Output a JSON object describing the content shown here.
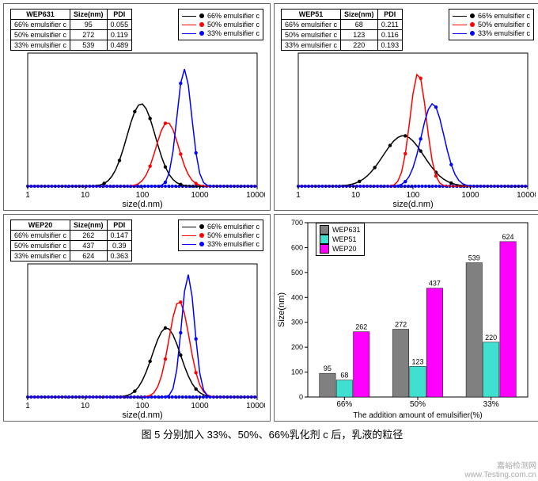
{
  "colors": {
    "black": "#000000",
    "red": "#ff0000",
    "blue": "#0000ff",
    "axis": "#000",
    "dots": "#0000ff",
    "barGray": "#808080",
    "barCyan": "#40e0d0",
    "barMagenta": "#ff00ff",
    "wm": "#b8b8b8"
  },
  "axis": {
    "xmin": 1,
    "xmax": 10000,
    "xlabel": "size(d.nm)",
    "xticks": [
      1,
      10,
      100,
      1000,
      10000
    ],
    "fontSize": 11
  },
  "legendLabels": [
    "66% emulsifier c",
    "50% emulsifier c",
    "33% emulsifier c"
  ],
  "tableHeaders": [
    "",
    "Size(nm)",
    "PDI"
  ],
  "panels": [
    {
      "key": "WEP631",
      "rows": [
        [
          "66% emulsifier c",
          "95",
          "0.055"
        ],
        [
          "50% emulsifier c",
          "272",
          "0.119"
        ],
        [
          "33% emulsifier c",
          "539",
          "0.489"
        ]
      ],
      "curves": [
        {
          "c": "black",
          "peak": 95,
          "h": 0.62,
          "w": 0.35
        },
        {
          "c": "red",
          "peak": 272,
          "h": 0.48,
          "w": 0.28
        },
        {
          "c": "blue",
          "peak": 539,
          "h": 0.88,
          "w": 0.18
        }
      ]
    },
    {
      "key": "WEP51",
      "rows": [
        [
          "66% emulsifier c",
          "68",
          "0.211"
        ],
        [
          "50% emulsifier c",
          "123",
          "0.116"
        ],
        [
          "33% emulsifier c",
          "220",
          "0.193"
        ]
      ],
      "curves": [
        {
          "c": "black",
          "peak": 68,
          "h": 0.38,
          "w": 0.5
        },
        {
          "c": "red",
          "peak": 123,
          "h": 0.85,
          "w": 0.2
        },
        {
          "c": "blue",
          "peak": 220,
          "h": 0.62,
          "w": 0.28
        }
      ]
    },
    {
      "key": "WEP20",
      "rows": [
        [
          "66% emulsifier c",
          "262",
          "0.147"
        ],
        [
          "50% emulsifier c",
          "437",
          "0.39"
        ],
        [
          "33% emulsifier c",
          "624",
          "0.363"
        ]
      ],
      "curves": [
        {
          "c": "black",
          "peak": 262,
          "h": 0.52,
          "w": 0.35
        },
        {
          "c": "red",
          "peak": 437,
          "h": 0.72,
          "w": 0.25
        },
        {
          "c": "blue",
          "peak": 624,
          "h": 0.92,
          "w": 0.16
        }
      ]
    }
  ],
  "barChart": {
    "ylabel": "Size(nm)",
    "xlabel": "The addition amount of emulsifier(%)",
    "ylim": [
      0,
      700
    ],
    "yticks": [
      0,
      100,
      200,
      300,
      400,
      500,
      600,
      700
    ],
    "categories": [
      "66%",
      "50%",
      "33%"
    ],
    "series": [
      {
        "name": "WEP631",
        "color": "#808080",
        "values": [
          95,
          272,
          539
        ]
      },
      {
        "name": "WEP51",
        "color": "#40e0d0",
        "values": [
          68,
          123,
          220
        ]
      },
      {
        "name": "WEP20",
        "color": "#ff00ff",
        "values": [
          262,
          437,
          624
        ]
      }
    ],
    "barLabelFontSize": 9
  },
  "caption": "图 5 分别加入 33%、50%、66%乳化剂 c 后，乳液的粒径",
  "watermark": {
    "line1": "嘉峪检测网",
    "line2": "www.Testing.com.cn"
  }
}
